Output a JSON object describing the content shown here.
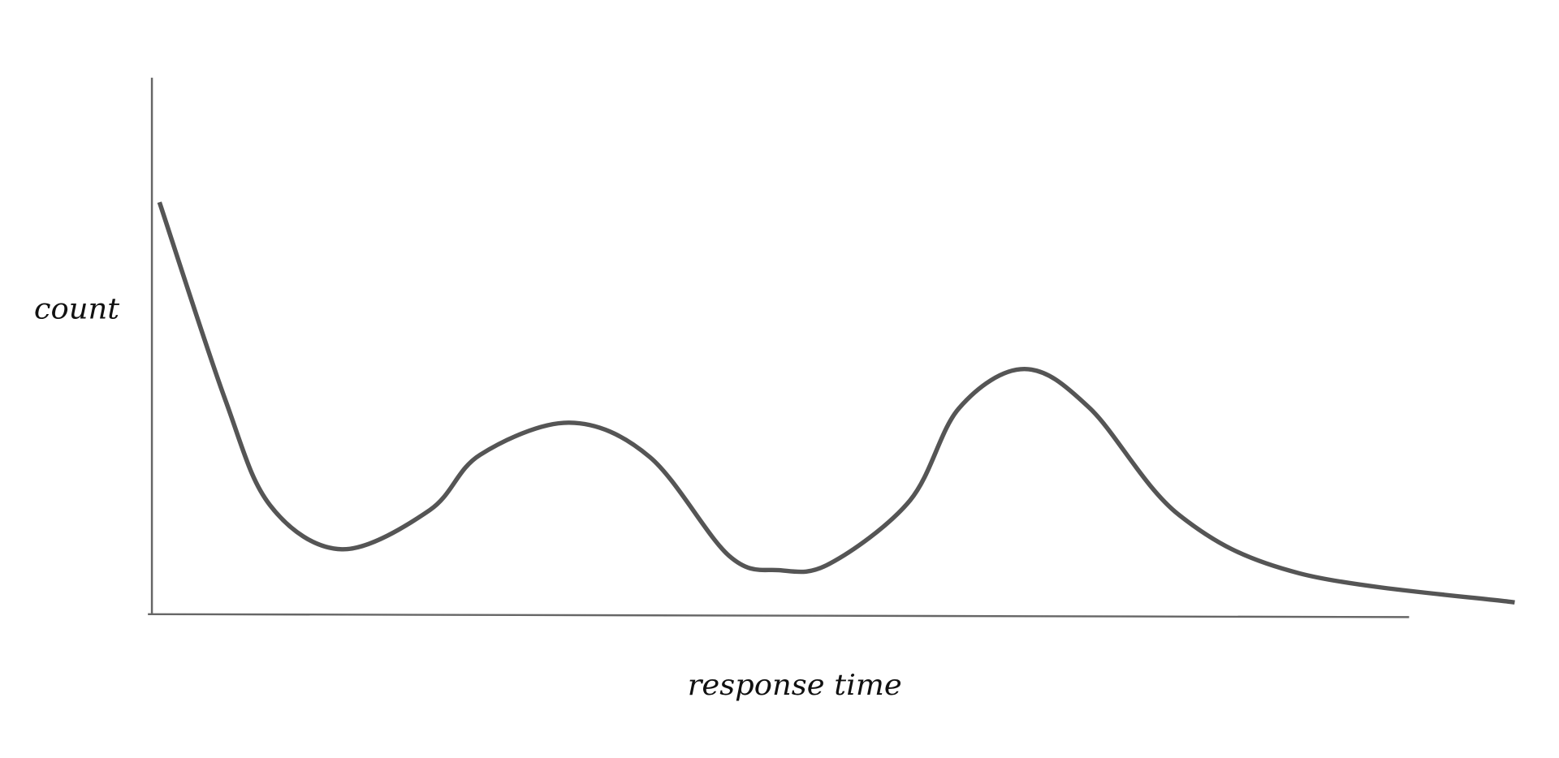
{
  "chart_data": {
    "type": "line",
    "title": "",
    "xlabel": "response time",
    "ylabel": "count",
    "xlim": [
      0,
      100
    ],
    "ylim": [
      0,
      100
    ],
    "grid": false,
    "ticks": false,
    "line_color": "#555555",
    "axis_color": "#666666",
    "series": [
      {
        "x": [
          0.6,
          5.8,
          9.4,
          15.1,
          22.1,
          26.1,
          33.2,
          39.6,
          45.9,
          49.9,
          53.9,
          60.3,
          64.2,
          69.4,
          74.6,
          81.7,
          91.3,
          108.4
        ],
        "y": [
          76.8,
          40.2,
          20.3,
          12.1,
          19.4,
          29.7,
          35.7,
          29.3,
          10.9,
          8.2,
          9.4,
          21.2,
          38.4,
          45.7,
          38.4,
          18.5,
          7.6,
          2.2
        ]
      }
    ]
  }
}
